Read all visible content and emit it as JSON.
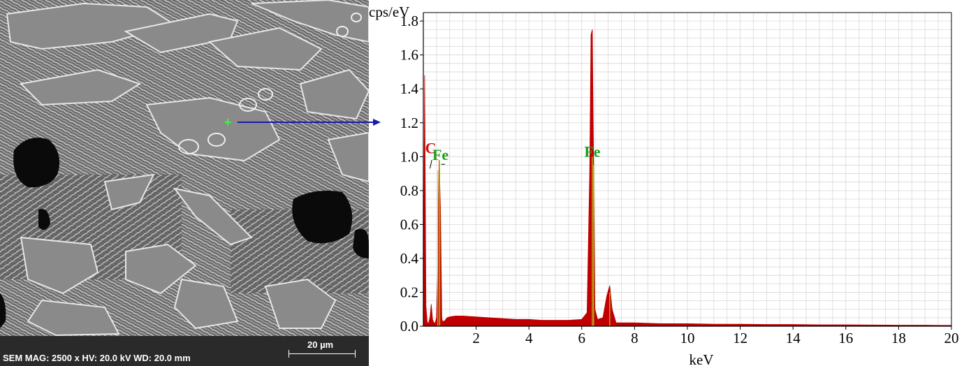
{
  "sem_panel": {
    "info_text": "SEM  MAG: 2500 x  HV: 20.0 kV  WD: 20.0 mm",
    "scale_label": "20 µm",
    "marker": "+",
    "colors": {
      "marker": "#33ff33",
      "arrow": "#1a1aa8"
    }
  },
  "chart_data": {
    "type": "line",
    "ylabel": "cps/eV",
    "xlabel": "keV",
    "xlim": [
      0,
      20
    ],
    "ylim": [
      0,
      1.85
    ],
    "xticks": [
      2,
      4,
      6,
      8,
      10,
      12,
      14,
      16,
      18,
      20
    ],
    "yticks": [
      0.0,
      0.2,
      0.4,
      0.6,
      0.8,
      1.0,
      1.2,
      1.4,
      1.6,
      1.8
    ],
    "grid": true,
    "series": [
      {
        "color": "#c00000",
        "x": [
          0.0,
          0.05,
          0.1,
          0.15,
          0.2,
          0.25,
          0.3,
          0.35,
          0.4,
          0.45,
          0.5,
          0.55,
          0.6,
          0.65,
          0.7,
          0.72,
          0.75,
          0.8,
          0.85,
          0.9,
          1.0,
          1.2,
          1.5,
          2.0,
          2.5,
          3.0,
          3.5,
          4.0,
          4.5,
          5.0,
          5.5,
          6.0,
          6.2,
          6.3,
          6.35,
          6.4,
          6.45,
          6.5,
          6.6,
          6.8,
          6.95,
          7.06,
          7.15,
          7.3,
          7.5,
          8.0,
          9.0,
          10.0,
          11.0,
          12.0,
          13.0,
          14.0,
          15.0,
          16.0,
          17.0,
          18.0,
          19.0,
          19.5,
          20.0
        ],
        "y": [
          0.0,
          1.48,
          0.12,
          0.02,
          0.02,
          0.05,
          0.13,
          0.04,
          0.02,
          0.02,
          0.05,
          0.35,
          0.98,
          0.7,
          0.05,
          0.03,
          0.03,
          0.03,
          0.04,
          0.05,
          0.055,
          0.06,
          0.06,
          0.055,
          0.05,
          0.045,
          0.04,
          0.04,
          0.035,
          0.035,
          0.035,
          0.04,
          0.08,
          0.9,
          1.72,
          1.75,
          0.95,
          0.1,
          0.04,
          0.05,
          0.18,
          0.24,
          0.1,
          0.02,
          0.02,
          0.02,
          0.015,
          0.015,
          0.012,
          0.012,
          0.01,
          0.01,
          0.008,
          0.008,
          0.007,
          0.006,
          0.006,
          0.005,
          0.005
        ]
      }
    ],
    "annotations": [
      {
        "text": "C",
        "x": 0.28,
        "y": 1.02,
        "color": "#d01010"
      },
      {
        "text": "Fe",
        "x": 0.65,
        "y": 0.98,
        "color": "#1aa01a"
      },
      {
        "text": "Fe",
        "x": 6.4,
        "y": 1.0,
        "color": "#1aa01a"
      }
    ]
  }
}
